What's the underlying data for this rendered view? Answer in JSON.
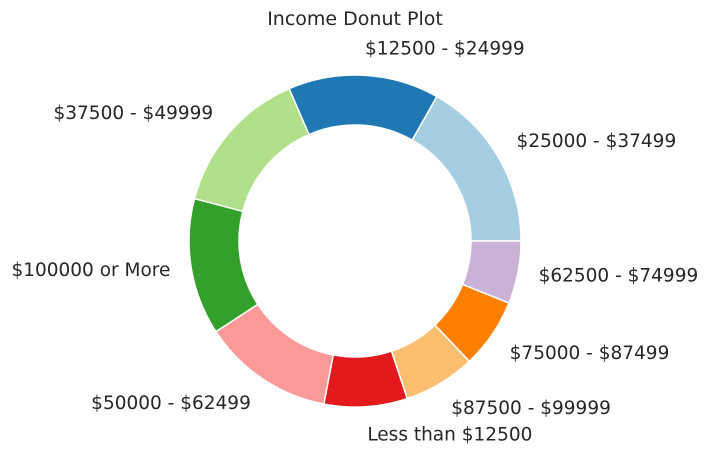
{
  "chart_data": {
    "type": "pie",
    "title": "Income Donut Plot",
    "donut": true,
    "start": "right, going counter-clockwise",
    "slices": [
      {
        "label": "$25000 - $37499",
        "value": 16.8,
        "color": "#a6cee3"
      },
      {
        "label": "$12500 - $24999",
        "value": 14.7,
        "color": "#1f78b4"
      },
      {
        "label": "$37500 - $49999",
        "value": 14.4,
        "color": "#b2df8a"
      },
      {
        "label": "$100000 or More",
        "value": 13.3,
        "color": "#33a02c"
      },
      {
        "label": "$50000 - $62499",
        "value": 12.8,
        "color": "#fb9a99"
      },
      {
        "label": "Less than $12500",
        "value": 8.1,
        "color": "#e31a1c"
      },
      {
        "label": "$87500 - $99999",
        "value": 7.0,
        "color": "#fdbf6f"
      },
      {
        "label": "$75000 - $87499",
        "value": 6.8,
        "color": "#ff7f00"
      },
      {
        "label": "$62500 - $74999",
        "value": 6.1,
        "color": "#cab2d6"
      }
    ]
  }
}
